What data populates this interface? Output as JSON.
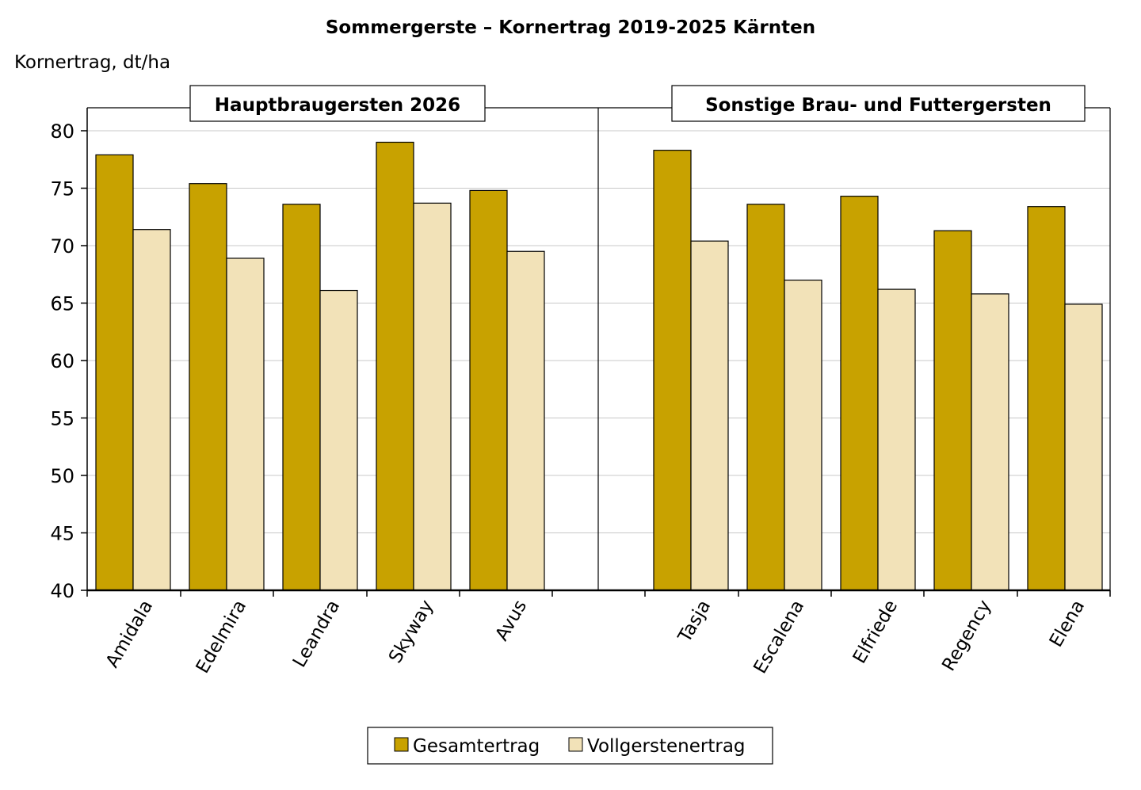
{
  "chart_data": {
    "type": "bar",
    "title": "Sommergerste – Kornertrag 2019-2025 Kärnten",
    "ylabel": "Kornertrag, dt/ha",
    "xlabel": "",
    "ylim": [
      40,
      80
    ],
    "yticks": [
      40,
      45,
      50,
      55,
      60,
      65,
      70,
      75,
      80
    ],
    "grid": true,
    "legend_position": "bottom-center",
    "colors": {
      "Gesamtertrag": "#c8a200",
      "Vollgerstenertrag": "#f2e2b8"
    },
    "groups": [
      {
        "label": "Hauptbraugersten 2026",
        "categories": [
          "Amidala",
          "Edelmira",
          "Leandra",
          "Skyway",
          "Avus"
        ],
        "series": [
          {
            "name": "Gesamtertrag",
            "values": [
              77.9,
              75.4,
              73.6,
              79.0,
              74.8
            ]
          },
          {
            "name": "Vollgerstenertrag",
            "values": [
              71.4,
              68.9,
              66.1,
              73.7,
              69.5
            ]
          }
        ]
      },
      {
        "label": "Sonstige Brau- und Futtergersten",
        "categories": [
          "Tasja",
          "Escalena",
          "Elfriede",
          "Regency",
          "Elena"
        ],
        "series": [
          {
            "name": "Gesamtertrag",
            "values": [
              78.3,
              73.6,
              74.3,
              71.3,
              73.4
            ]
          },
          {
            "name": "Vollgerstenertrag",
            "values": [
              70.4,
              67.0,
              66.2,
              65.8,
              64.9
            ]
          }
        ]
      }
    ]
  }
}
